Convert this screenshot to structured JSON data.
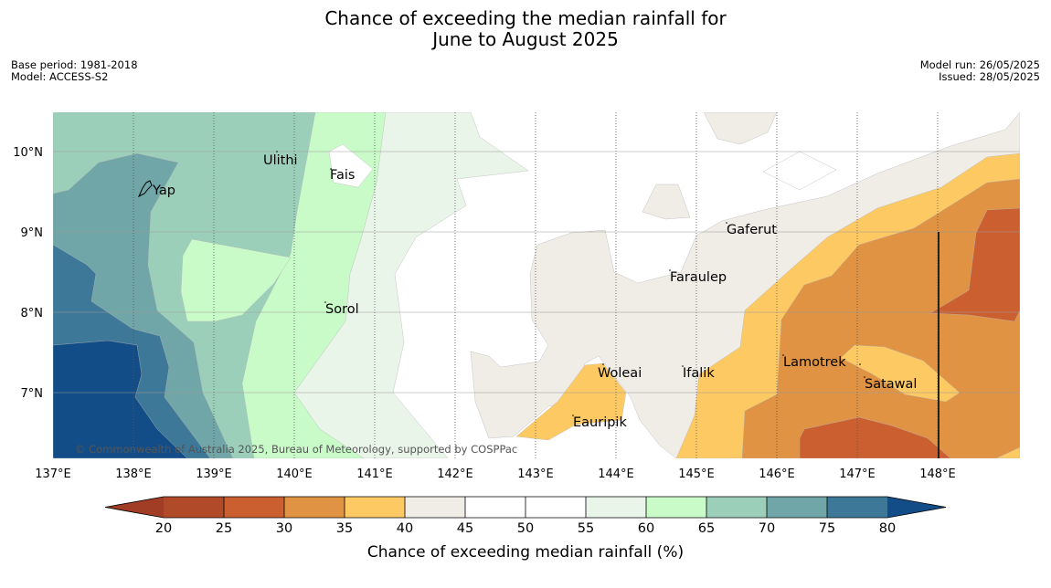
{
  "header": {
    "title_line1": "Chance of exceeding the median rainfall for",
    "title_line2": "June to August 2025",
    "base_period": "Base period: 1981-2018",
    "model": "Model: ACCESS-S2",
    "model_run": "Model run: 26/05/2025",
    "issued": "Issued: 28/05/2025"
  },
  "map": {
    "lon_ticks": [
      "137°E",
      "138°E",
      "139°E",
      "140°E",
      "141°E",
      "142°E",
      "143°E",
      "144°E",
      "145°E",
      "146°E",
      "147°E",
      "148°E"
    ],
    "lat_ticks": [
      "10°N",
      "9°N",
      "8°N",
      "7°N"
    ],
    "places": [
      "Ulithi",
      "Fais",
      "Yap",
      "Gaferut",
      "Faraulep",
      "Sorol",
      "Lamotrek",
      "Woleai",
      "Ifalik",
      "Satawal",
      "Eauripik"
    ],
    "copyright": "© Commonwealth of Australia 2025, Bureau of Meteorology, supported by COSPPac"
  },
  "colorbar": {
    "title": "Chance of exceeding median rainfall (%)",
    "ticks": [
      "20",
      "25",
      "30",
      "35",
      "40",
      "45",
      "50",
      "55",
      "60",
      "65",
      "70",
      "75",
      "80"
    ],
    "colors": {
      "under": "#a23d25",
      "c20_25": "#b04a28",
      "c25_30": "#cb5f30",
      "c30_35": "#e09343",
      "c35_40": "#fdc963",
      "c40_45": "#f0ece6",
      "c45_50": "#ffffff",
      "c50_55": "#ffffff",
      "c55_60": "#eaf5ea",
      "c60_65": "#c9fbc9",
      "c65_70": "#9ccfba",
      "c70_75": "#70a6a8",
      "c75_80": "#3e7898",
      "over": "#134d88"
    }
  }
}
